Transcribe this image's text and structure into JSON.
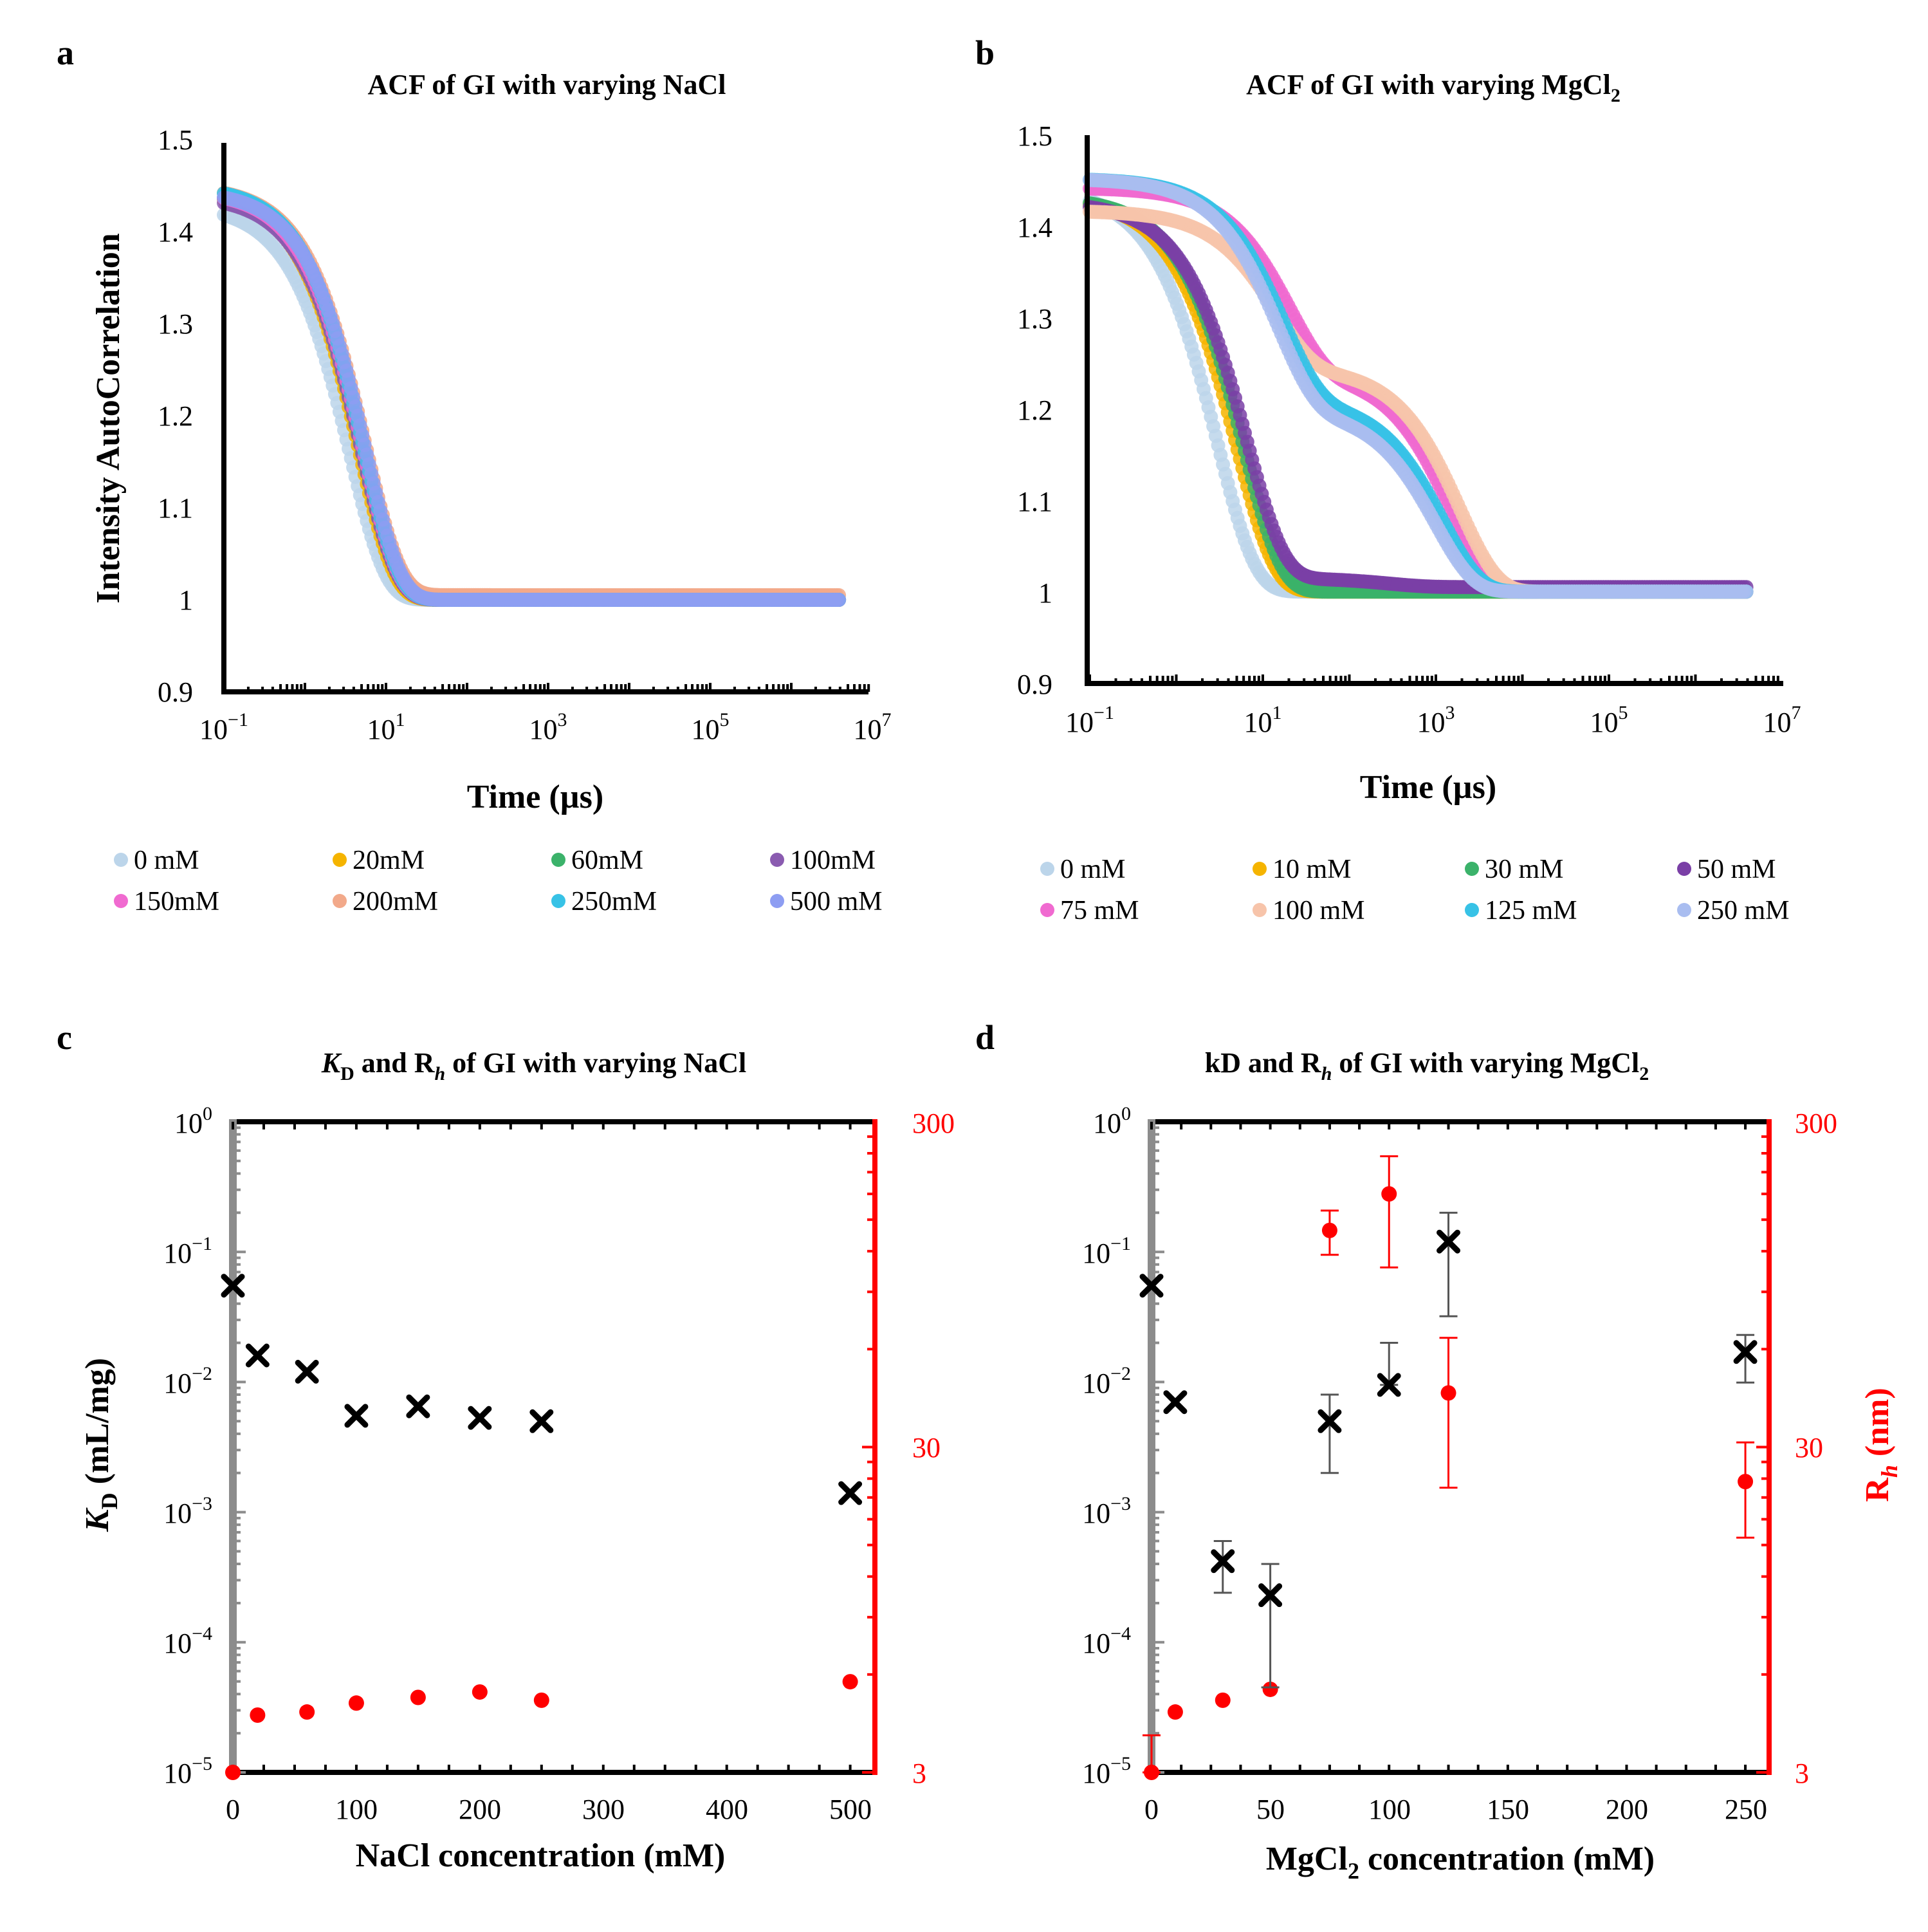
{
  "figure": {
    "panel_labels": [
      "a",
      "b",
      "c",
      "d"
    ]
  },
  "chart_data": [
    {
      "panel": "a",
      "type": "scatter",
      "title": "ACF of GI with varying NaCl",
      "xlabel": "Time (µs)",
      "ylabel": "Intensity AutoCorrelation",
      "xscale": "log",
      "xlim": [
        0.1,
        10000000
      ],
      "ylim": [
        0.9,
        1.5
      ],
      "yticks": [
        "0.9",
        "1",
        "1.1",
        "1.2",
        "1.3",
        "1.4",
        "1.5"
      ],
      "xticks": [
        {
          "base": "10",
          "exp": "−1"
        },
        {
          "base": "10",
          "exp": "1"
        },
        {
          "base": "10",
          "exp": "3"
        },
        {
          "base": "10",
          "exp": "5"
        },
        {
          "base": "10",
          "exp": "7"
        }
      ],
      "legend_position": "bottom",
      "series": [
        {
          "name": "0 mM",
          "color": "#bcd5ea",
          "tau": 3.6,
          "amp": 0.43,
          "base": 1.0
        },
        {
          "name": "20mM",
          "color": "#f5b400",
          "tau": 4.6,
          "amp": 0.445,
          "base": 1.0
        },
        {
          "name": "60mM",
          "color": "#3bb26a",
          "tau": 5.0,
          "amp": 0.445,
          "base": 1.0
        },
        {
          "name": "100mM",
          "color": "#8a5bb0",
          "tau": 5.0,
          "amp": 0.44,
          "base": 1.0
        },
        {
          "name": "150mM",
          "color": "#f06ad0",
          "tau": 5.2,
          "amp": 0.445,
          "base": 1.0
        },
        {
          "name": "200mM",
          "color": "#f2a98a",
          "tau": 5.6,
          "amp": 0.445,
          "base": 1.005
        },
        {
          "name": "250mM",
          "color": "#37c2e6",
          "tau": 5.3,
          "amp": 0.45,
          "base": 1.0
        },
        {
          "name": "500 mM",
          "color": "#8d9df2",
          "tau": 5.6,
          "amp": 0.445,
          "base": 1.0
        }
      ]
    },
    {
      "panel": "b",
      "type": "scatter",
      "title": "ACF of GI with varying MgCl",
      "title_sub": "2",
      "xlabel": "Time (µs)",
      "ylabel": "",
      "xscale": "log",
      "xlim": [
        0.1,
        10000000
      ],
      "ylim": [
        0.9,
        1.5
      ],
      "yticks": [
        "0.9",
        "1",
        "1.1",
        "1.2",
        "1.3",
        "1.4",
        "1.5"
      ],
      "xticks": [
        {
          "base": "10",
          "exp": "−1"
        },
        {
          "base": "10",
          "exp": "1"
        },
        {
          "base": "10",
          "exp": "3"
        },
        {
          "base": "10",
          "exp": "5"
        },
        {
          "base": "10",
          "exp": "7"
        }
      ],
      "legend_position": "bottom",
      "series": [
        {
          "name": "0 mM",
          "color": "#bcd5ea",
          "tau": 3.0,
          "amp": 0.44,
          "base": 1.0
        },
        {
          "name": "10 mM",
          "color": "#f5b400",
          "tau": 5.0,
          "amp": 0.43,
          "base": 1.0
        },
        {
          "name": "30 mM",
          "color": "#3bb26a",
          "tau": 6.0,
          "amp": 0.43,
          "base": 1.0
        },
        {
          "name": "50 mM",
          "color": "#7a3fa6",
          "tau": 6.5,
          "amp": 0.41,
          "base": 1.005,
          "tau2": 300,
          "amp2": 0.01
        },
        {
          "name": "75 mM",
          "color": "#f06ad0",
          "tau": 20,
          "amp": 0.2,
          "base": 1.0,
          "tau2": 1500,
          "amp2": 0.24
        },
        {
          "name": "100 mM",
          "color": "#f7c4aa",
          "tau": 14,
          "amp": 0.17,
          "base": 1.0,
          "tau2": 1900,
          "amp2": 0.245
        },
        {
          "name": "125 mM",
          "color": "#37c2e6",
          "tau": 17,
          "amp": 0.24,
          "base": 1.0,
          "tau2": 1200,
          "amp2": 0.21
        },
        {
          "name": "250 mM",
          "color": "#a9bdf0",
          "tau": 15,
          "amp": 0.25,
          "base": 1.0,
          "tau2": 1000,
          "amp2": 0.2
        }
      ]
    },
    {
      "panel": "c",
      "type": "scatter",
      "title_italic": "K",
      "title_sub": "D",
      "title_rest": " and R",
      "title_sub2": "h",
      "title_tail": " of GI with varying NaCl",
      "xlabel": "NaCl concentration (mM)",
      "ylabel_italic": "K",
      "ylabel_sub": "D",
      "ylabel_tail": " (mL/mg)",
      "y2label": "",
      "xlim": [
        0,
        520
      ],
      "xticks": [
        "0",
        "100",
        "200",
        "300",
        "400",
        "500"
      ],
      "ylim_log": [
        -5,
        0
      ],
      "yticks": [
        {
          "base": "10",
          "exp": "0"
        },
        {
          "base": "10",
          "exp": "−1"
        },
        {
          "base": "10",
          "exp": "−2"
        },
        {
          "base": "10",
          "exp": "−3"
        },
        {
          "base": "10",
          "exp": "−4"
        },
        {
          "base": "10",
          "exp": "−5"
        }
      ],
      "y2lim": [
        3,
        300
      ],
      "y2ticks": [
        "300",
        "30",
        "3"
      ],
      "kd_series": {
        "name": "KD",
        "color": "#000000",
        "x": [
          0,
          20,
          60,
          100,
          150,
          200,
          250,
          500
        ],
        "y": [
          0.055,
          0.016,
          0.012,
          0.0055,
          0.0065,
          0.0053,
          0.005,
          0.0014
        ]
      },
      "rh_series": {
        "name": "Rh",
        "color": "#ff0000",
        "x": [
          0,
          20,
          60,
          100,
          150,
          200,
          250,
          500
        ],
        "y": [
          3.0,
          4.5,
          4.6,
          4.9,
          5.1,
          5.3,
          5.0,
          5.7
        ]
      }
    },
    {
      "panel": "d",
      "type": "scatter",
      "title": "kD and R",
      "title_sub2": "h",
      "title_tail": " of GI with varying MgCl",
      "title_sub3": "2",
      "xlabel": "MgCl",
      "xlabel_sub": "2",
      "xlabel_tail": " concentration (mM)",
      "y2label": "R",
      "y2label_sub": "h",
      "y2label_tail": " (nm)",
      "xlim": [
        0,
        260
      ],
      "xticks": [
        "0",
        "50",
        "100",
        "150",
        "200",
        "250"
      ],
      "ylim_log": [
        -5,
        0
      ],
      "yticks": [
        {
          "base": "10",
          "exp": "0"
        },
        {
          "base": "10",
          "exp": "−1"
        },
        {
          "base": "10",
          "exp": "−2"
        },
        {
          "base": "10",
          "exp": "−3"
        },
        {
          "base": "10",
          "exp": "−4"
        },
        {
          "base": "10",
          "exp": "−5"
        }
      ],
      "y2lim": [
        3,
        300
      ],
      "y2ticks": [
        "300",
        "30",
        "3"
      ],
      "kd_series": {
        "name": "kD",
        "color": "#000000",
        "x": [
          0,
          10,
          30,
          50,
          75,
          100,
          125,
          250
        ],
        "y": [
          0.055,
          0.007,
          0.00042,
          0.00023,
          0.005,
          0.0095,
          0.12,
          0.017
        ],
        "err_lo": [
          null,
          null,
          0.00024,
          4.5e-05,
          0.002,
          null,
          0.032,
          0.0099
        ],
        "err_hi": [
          null,
          null,
          0.0006,
          0.0004,
          0.008,
          0.02,
          0.2,
          0.023
        ]
      },
      "rh_series": {
        "name": "Rh",
        "color": "#ff0000",
        "x": [
          0,
          10,
          30,
          50,
          75,
          100,
          125,
          250
        ],
        "y": [
          3.0,
          4.6,
          5.0,
          5.4,
          139,
          180,
          44,
          23.5
        ],
        "err_lo": [
          null,
          null,
          null,
          null,
          117,
          107,
          22.5,
          15.8
        ],
        "err_hi": [
          3.9,
          null,
          null,
          null,
          160,
          235,
          65,
          31
        ]
      }
    }
  ]
}
